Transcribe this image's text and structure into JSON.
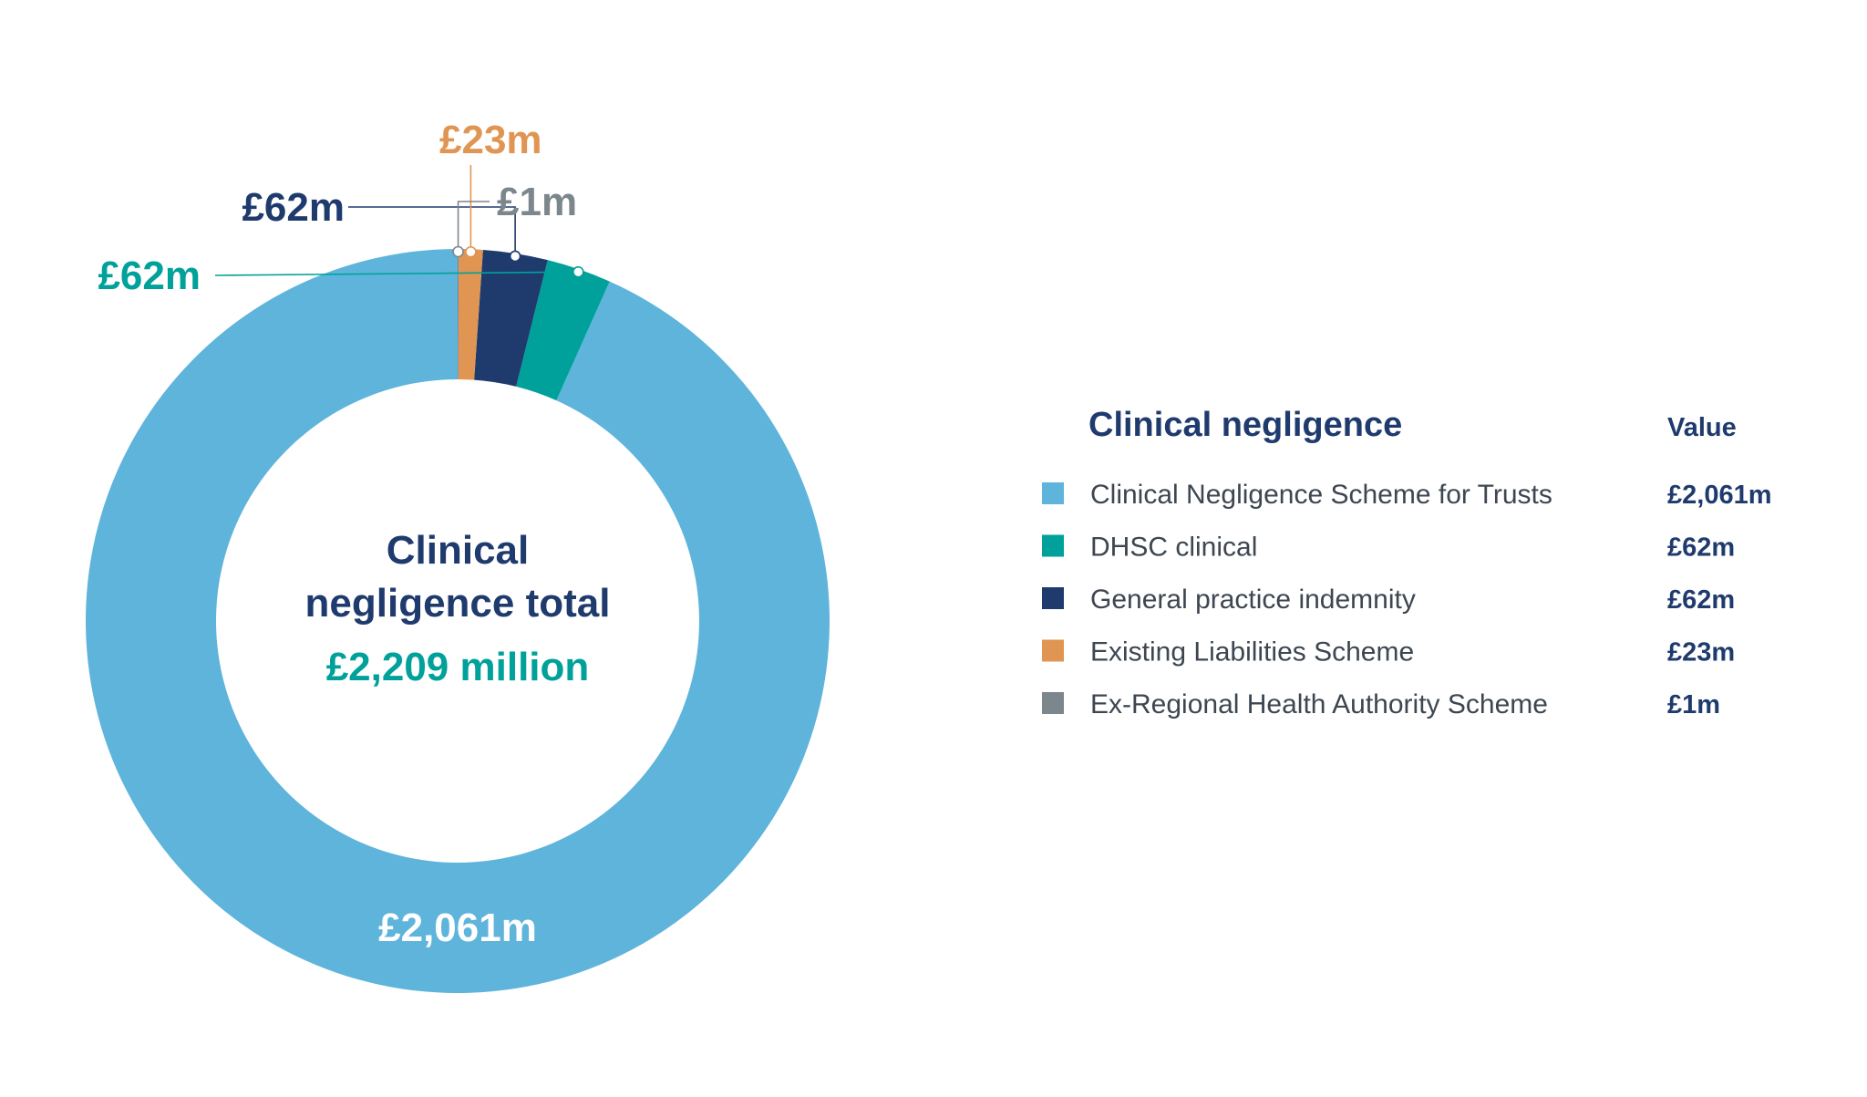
{
  "chart_data": {
    "type": "pie",
    "donut": true,
    "center": {
      "title_lines": [
        "Clinical",
        "negligence total"
      ],
      "total": "£2,209 million"
    },
    "legend": {
      "title": "Clinical negligence",
      "value_header": "Value"
    },
    "slices": [
      {
        "name": "Clinical Negligence Scheme for Trusts",
        "value": 2061,
        "label": "£2,061m",
        "color": "#5eb4db"
      },
      {
        "name": "DHSC clinical",
        "value": 62,
        "label": "£62m",
        "color": "#00a19a"
      },
      {
        "name": "General practice indemnity",
        "value": 62,
        "label": "£62m",
        "color": "#1f3b6e"
      },
      {
        "name": "Existing Liabilities Scheme",
        "value": 23,
        "label": "£23m",
        "color": "#e19552"
      },
      {
        "name": "Ex-Regional Health Authority Scheme",
        "value": 1,
        "label": "£1m",
        "color": "#7c868d"
      }
    ],
    "direction": "counterclockwise-from-top",
    "callout_colors": {
      "inner_label": "#ffffff",
      "grey_label": "#7c868d"
    }
  }
}
